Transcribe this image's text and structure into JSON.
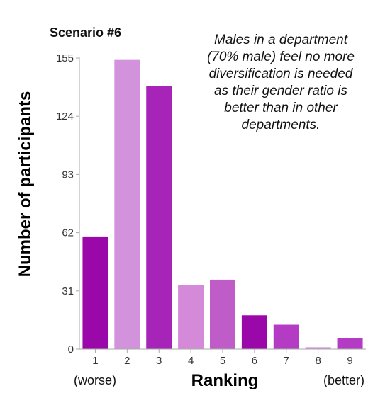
{
  "chart_data": {
    "type": "bar",
    "title": "Scenario #6",
    "annotation": [
      "Males in a department",
      "(70% male) feel no more",
      "diversification is needed",
      "as their gender ratio is",
      "better than in other",
      "departments."
    ],
    "xlabel": "Ranking",
    "ylabel": "Number of participants",
    "x_start_note": "(worse)",
    "x_end_note": "(better)",
    "categories": [
      "1",
      "2",
      "3",
      "4",
      "5",
      "6",
      "7",
      "8",
      "9"
    ],
    "values": [
      60,
      154,
      140,
      34,
      37,
      18,
      13,
      1,
      6
    ],
    "ylim": [
      0,
      155
    ],
    "yticks": [
      0,
      31,
      62,
      93,
      124,
      155
    ],
    "colors": [
      "#9a08aa",
      "#d392dc",
      "#a624b8",
      "#d48ad8",
      "#bf5cc8",
      "#9a08aa",
      "#b43cc4",
      "#d392dc",
      "#b43cc4"
    ],
    "grid": false
  }
}
